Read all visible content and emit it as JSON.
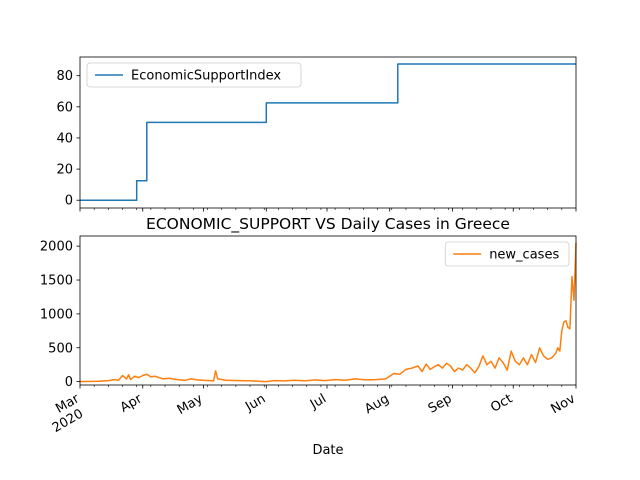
{
  "chart_data": [
    {
      "type": "line",
      "title": "",
      "xlabel": "",
      "ylabel": "",
      "xlim": [
        "2020-03-01",
        "2020-11-01"
      ],
      "ylim": [
        -5,
        92
      ],
      "yticks": [
        0,
        20,
        40,
        60,
        80
      ],
      "legend_position": "upper-left",
      "grid": false,
      "series": [
        {
          "name": "EconomicSupportIndex",
          "color": "#1f77b4",
          "step": true,
          "x": [
            "2020-03-01",
            "2020-03-29",
            "2020-04-03",
            "2020-06-01",
            "2020-08-05",
            "2020-11-01"
          ],
          "y": [
            0,
            12.5,
            50,
            62.5,
            87.5,
            87.5
          ]
        }
      ]
    },
    {
      "type": "line",
      "title": "ECONOMIC_SUPPORT VS Daily Cases in Greece",
      "xlabel": "Date",
      "ylabel": "",
      "xlim": [
        "2020-03-01",
        "2020-11-01"
      ],
      "ylim": [
        -50,
        2150
      ],
      "yticks": [
        0,
        500,
        1000,
        1500,
        2000
      ],
      "xticks": [
        {
          "date": "2020-03-01",
          "label": "Mar",
          "year_label": "2020"
        },
        {
          "date": "2020-04-01",
          "label": "Apr"
        },
        {
          "date": "2020-05-01",
          "label": "May"
        },
        {
          "date": "2020-06-01",
          "label": "Jun"
        },
        {
          "date": "2020-07-01",
          "label": "Jul"
        },
        {
          "date": "2020-08-01",
          "label": "Aug"
        },
        {
          "date": "2020-09-01",
          "label": "Sep"
        },
        {
          "date": "2020-10-01",
          "label": "Oct"
        },
        {
          "date": "2020-11-01",
          "label": "Nov"
        }
      ],
      "legend_position": "upper-right",
      "grid": false,
      "series": [
        {
          "name": "new_cases",
          "color": "#ff7f0e",
          "x": [
            "2020-03-01",
            "2020-03-10",
            "2020-03-15",
            "2020-03-18",
            "2020-03-20",
            "2020-03-22",
            "2020-03-24",
            "2020-03-25",
            "2020-03-26",
            "2020-03-28",
            "2020-03-30",
            "2020-04-01",
            "2020-04-03",
            "2020-04-05",
            "2020-04-07",
            "2020-04-09",
            "2020-04-11",
            "2020-04-14",
            "2020-04-18",
            "2020-04-22",
            "2020-04-25",
            "2020-04-28",
            "2020-05-01",
            "2020-05-06",
            "2020-05-07",
            "2020-05-08",
            "2020-05-12",
            "2020-05-18",
            "2020-05-25",
            "2020-06-01",
            "2020-06-05",
            "2020-06-10",
            "2020-06-15",
            "2020-06-20",
            "2020-06-25",
            "2020-06-30",
            "2020-07-05",
            "2020-07-10",
            "2020-07-15",
            "2020-07-20",
            "2020-07-25",
            "2020-07-30",
            "2020-08-03",
            "2020-08-06",
            "2020-08-09",
            "2020-08-12",
            "2020-08-15",
            "2020-08-17",
            "2020-08-19",
            "2020-08-21",
            "2020-08-23",
            "2020-08-25",
            "2020-08-27",
            "2020-08-29",
            "2020-08-31",
            "2020-09-02",
            "2020-09-04",
            "2020-09-06",
            "2020-09-08",
            "2020-09-10",
            "2020-09-12",
            "2020-09-14",
            "2020-09-16",
            "2020-09-18",
            "2020-09-20",
            "2020-09-22",
            "2020-09-24",
            "2020-09-26",
            "2020-09-28",
            "2020-09-30",
            "2020-10-02",
            "2020-10-04",
            "2020-10-06",
            "2020-10-08",
            "2020-10-10",
            "2020-10-12",
            "2020-10-14",
            "2020-10-16",
            "2020-10-18",
            "2020-10-20",
            "2020-10-22",
            "2020-10-23",
            "2020-10-24",
            "2020-10-25",
            "2020-10-26",
            "2020-10-27",
            "2020-10-28",
            "2020-10-29",
            "2020-10-30",
            "2020-10-31",
            "2020-11-01"
          ],
          "y": [
            0,
            5,
            15,
            30,
            20,
            90,
            40,
            100,
            30,
            80,
            60,
            90,
            110,
            70,
            80,
            60,
            40,
            50,
            30,
            20,
            40,
            25,
            20,
            10,
            160,
            40,
            20,
            15,
            10,
            0,
            15,
            10,
            20,
            10,
            25,
            15,
            30,
            20,
            40,
            25,
            30,
            40,
            120,
            110,
            180,
            200,
            230,
            150,
            260,
            180,
            220,
            250,
            200,
            270,
            230,
            150,
            200,
            170,
            250,
            200,
            130,
            220,
            380,
            250,
            300,
            200,
            350,
            280,
            170,
            450,
            300,
            250,
            350,
            250,
            400,
            280,
            500,
            380,
            330,
            350,
            420,
            500,
            450,
            750,
            880,
            900,
            800,
            780,
            1550,
            1200,
            2050
          ]
        }
      ]
    }
  ]
}
